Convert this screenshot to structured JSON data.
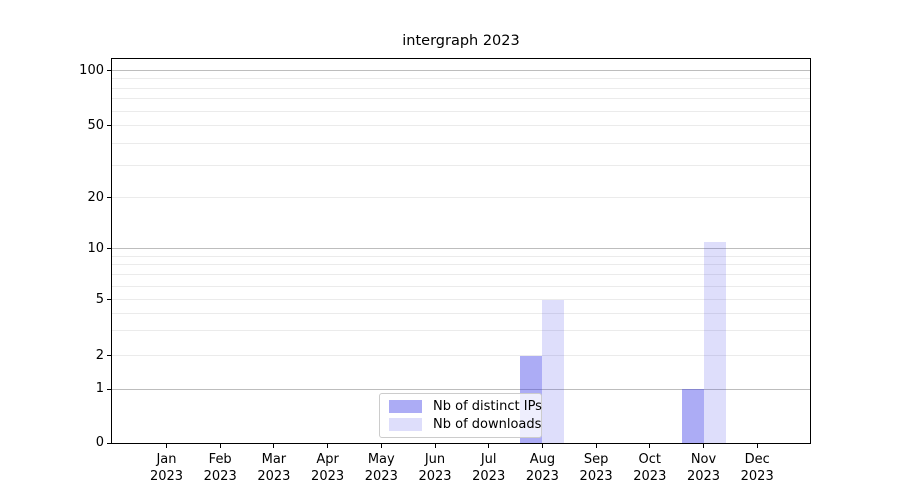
{
  "chart_data": {
    "type": "bar",
    "title": "intergraph 2023",
    "x": {
      "categories": [
        "Jan",
        "Feb",
        "Mar",
        "Apr",
        "May",
        "Jun",
        "Jul",
        "Aug",
        "Sep",
        "Oct",
        "Nov",
        "Dec"
      ],
      "year_suffix": "2023"
    },
    "y": {
      "scale": "log-like with 0 baseline",
      "tick_values": [
        0,
        1,
        2,
        5,
        10,
        20,
        50,
        100
      ],
      "ylim": [
        0,
        110
      ],
      "gridlines_major": [
        1,
        10,
        100
      ],
      "gridlines_minor": [
        2,
        3,
        4,
        5,
        6,
        7,
        8,
        9,
        20,
        30,
        40,
        50,
        60,
        70,
        80,
        90
      ]
    },
    "series": [
      {
        "name": "Nb of distinct IPs",
        "color": "rgba(62,62,232,0.43)",
        "values": [
          0,
          0,
          0,
          0,
          0,
          0,
          0,
          2,
          0,
          0,
          1,
          0
        ]
      },
      {
        "name": "Nb of downloads",
        "color": "rgba(62,62,232,0.17)",
        "values": [
          0,
          0,
          0,
          0,
          0,
          0,
          0,
          5,
          0,
          0,
          11,
          0
        ]
      }
    ],
    "legend": {
      "entries": [
        "Nb of distinct IPs",
        "Nb of downloads"
      ],
      "position": "lower center"
    },
    "grid": true
  }
}
